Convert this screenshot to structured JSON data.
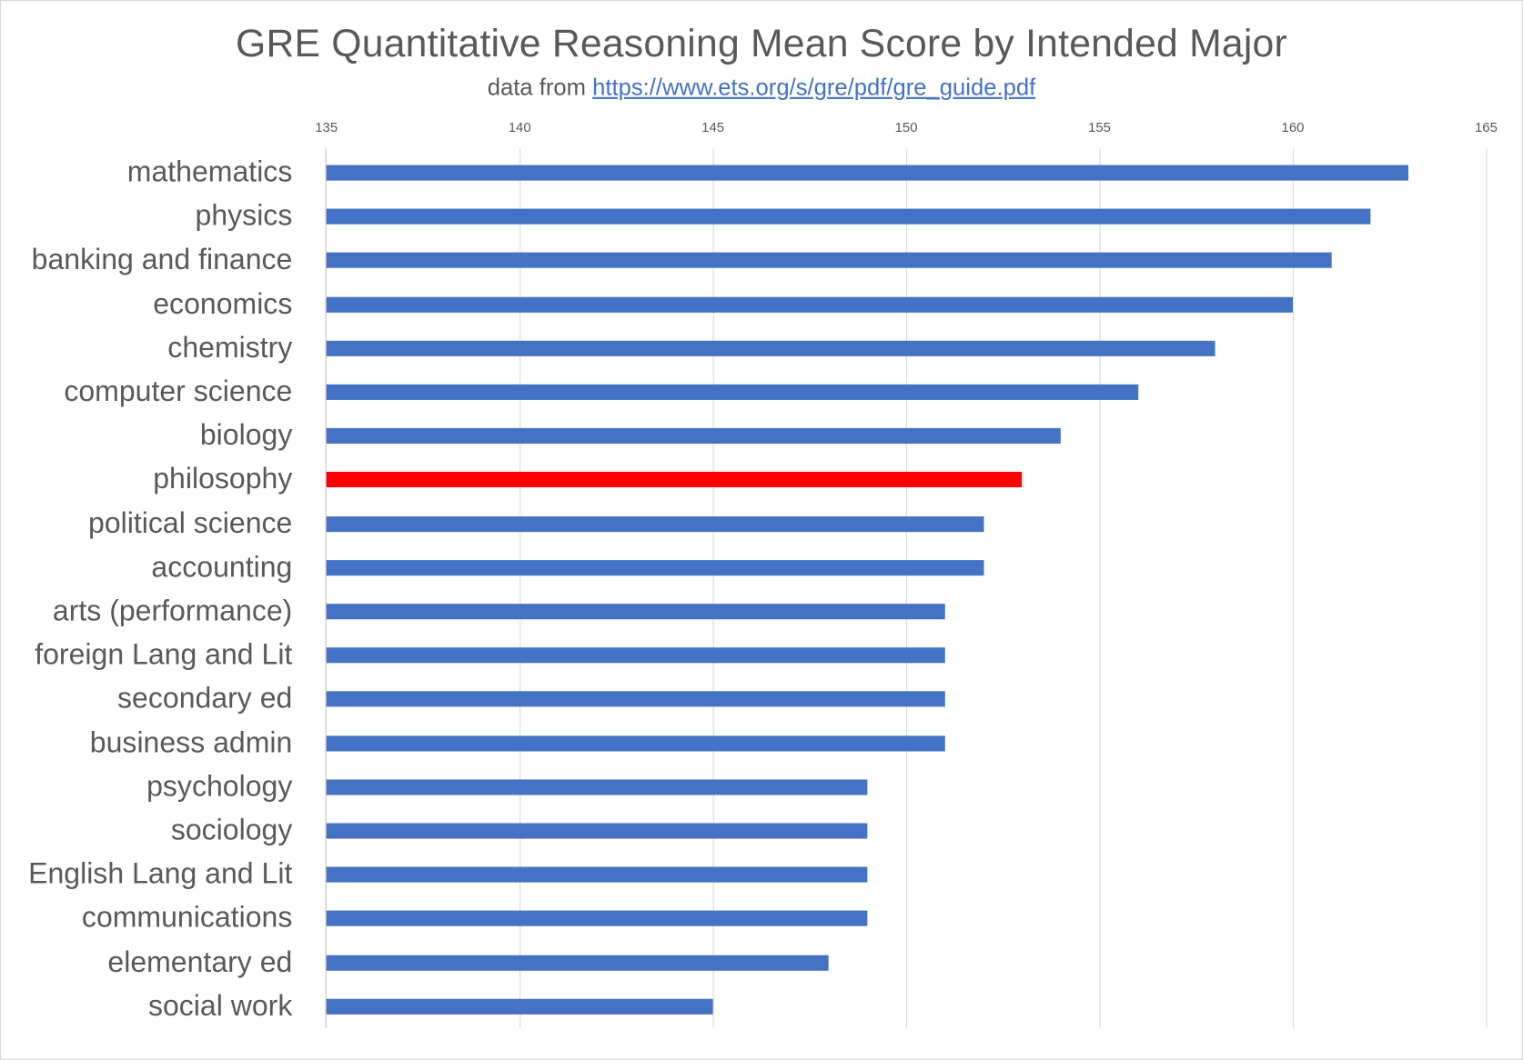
{
  "chart_data": {
    "type": "bar",
    "orientation": "horizontal",
    "title": "GRE Quantitative Reasoning Mean Score by Intended Major",
    "subtitle_prefix": "data from ",
    "subtitle_link": "https://www.ets.org/s/gre/pdf/gre_guide.pdf",
    "xlabel": "",
    "ylabel": "",
    "xlim": [
      135,
      165
    ],
    "x_ticks": [
      "135",
      "140",
      "145",
      "150",
      "155",
      "160",
      "165"
    ],
    "grid": true,
    "legend": "none",
    "categories": [
      "mathematics",
      "physics",
      "banking and finance",
      "economics",
      "chemistry",
      "computer science",
      "biology",
      "philosophy",
      "political science",
      "accounting",
      "arts (performance)",
      "foreign Lang and Lit",
      "secondary ed",
      "business admin",
      "psychology",
      "sociology",
      "English Lang and Lit",
      "communications",
      "elementary ed",
      "social work"
    ],
    "values": [
      163,
      162,
      161,
      160,
      158,
      156,
      154,
      153,
      152,
      152,
      151,
      151,
      151,
      151,
      149,
      149,
      149,
      149,
      148,
      145
    ],
    "highlight": {
      "category": "philosophy",
      "color": "#ff0000"
    },
    "colors": {
      "bar": "#4472c4",
      "highlight": "#ff0000",
      "text": "#595959",
      "grid": "#d9d9d9"
    }
  }
}
